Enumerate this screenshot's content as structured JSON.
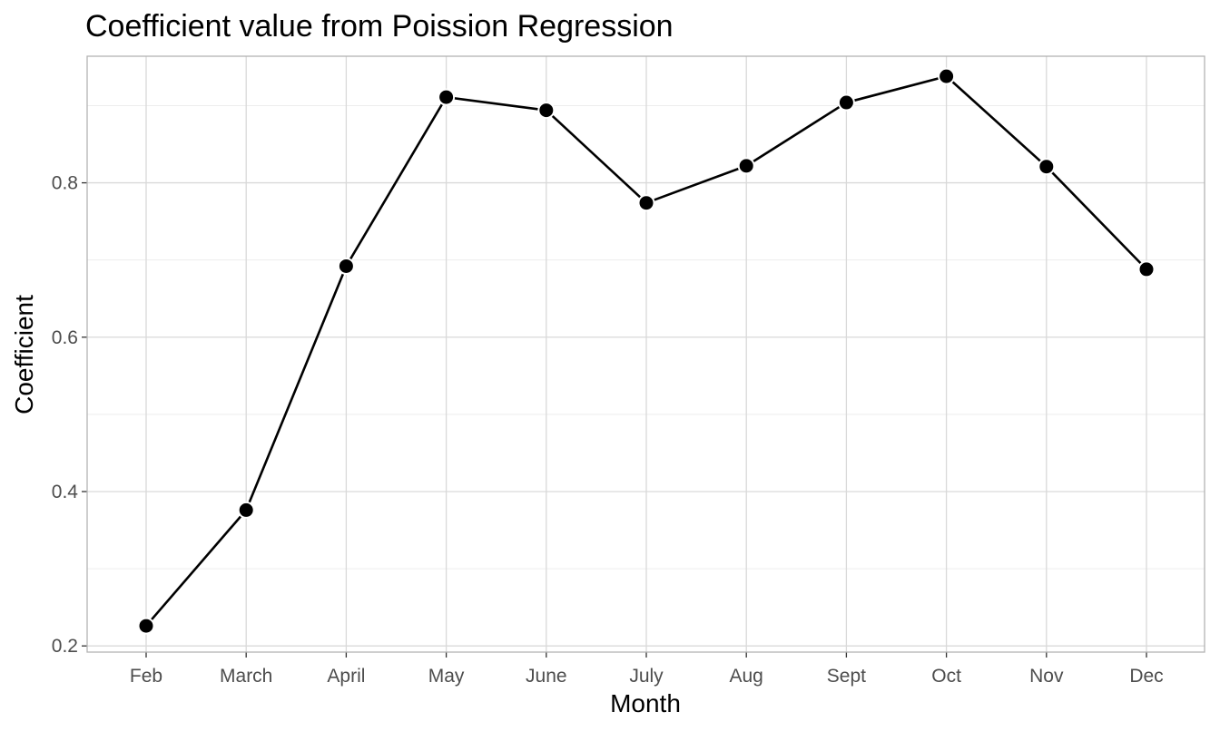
{
  "chart_data": {
    "type": "line",
    "title": "Coefficient value from Poission Regression",
    "xlabel": "Month",
    "ylabel": "Coefficient",
    "categories": [
      "Feb",
      "March",
      "April",
      "May",
      "June",
      "July",
      "Aug",
      "Sept",
      "Oct",
      "Nov",
      "Dec"
    ],
    "series": [
      {
        "values": [
          0.226,
          0.376,
          0.692,
          0.911,
          0.894,
          0.774,
          0.822,
          0.904,
          0.938,
          0.821,
          0.688
        ]
      }
    ],
    "ylim": [
      0.192,
      0.964
    ],
    "yticks": [
      "0.2",
      "0.4",
      "0.6",
      "0.8"
    ],
    "ytick_values": [
      0.2,
      0.4,
      0.6,
      0.8
    ],
    "grid": true,
    "colors": {
      "line": "#000000",
      "point_fill": "#000000",
      "point_stroke": "#ffffff",
      "grid_major": "#d9d9d9",
      "grid_minor": "#ededed",
      "panel_border": "#b3b3b3",
      "tick_label": "#4d4d4d"
    }
  }
}
